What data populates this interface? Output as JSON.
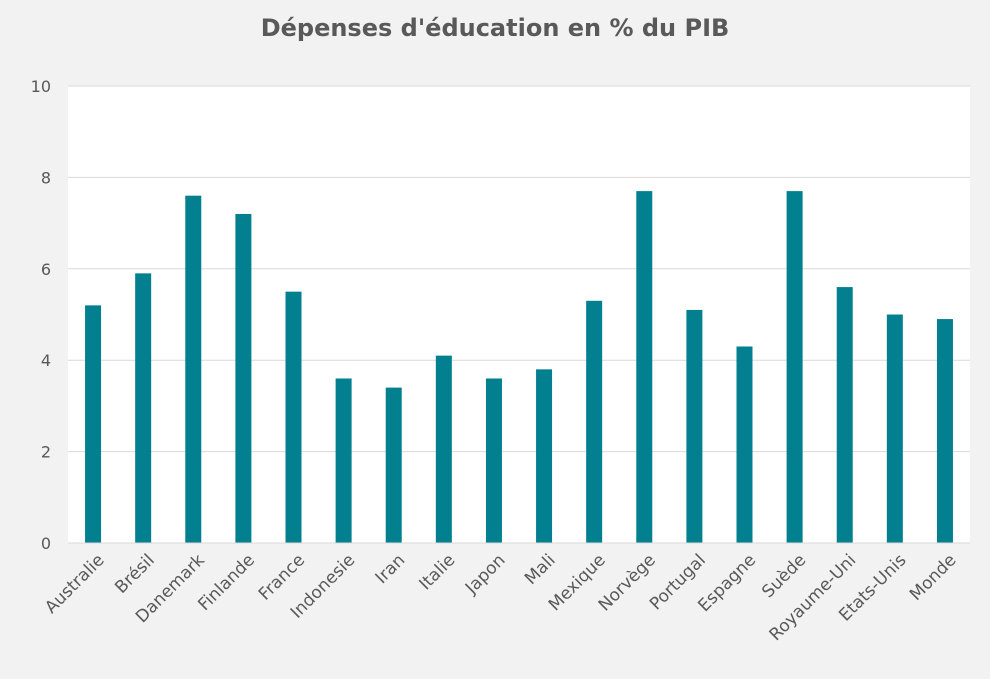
{
  "chart_data": {
    "type": "bar",
    "title": "Dépenses d'éducation en % du PIB",
    "xlabel": "",
    "ylabel": "",
    "categories": [
      "Australie",
      "Brésil",
      "Danemark",
      "Finlande",
      "France",
      "Indonesie",
      "Iran",
      "Italie",
      "Japon",
      "Mali",
      "Mexique",
      "Norvège",
      "Portugal",
      "Espagne",
      "Suède",
      "Royaume-Uni",
      "Etats-Unis",
      "Monde"
    ],
    "values": [
      5.2,
      5.9,
      7.6,
      7.2,
      5.5,
      3.6,
      3.4,
      4.1,
      3.6,
      3.8,
      5.3,
      7.7,
      5.1,
      4.3,
      7.7,
      5.6,
      5.0,
      4.9
    ],
    "ylim": [
      0,
      10
    ],
    "yticks": [
      0,
      2,
      4,
      6,
      8,
      10
    ],
    "grid": true,
    "legend": "none",
    "colors": {
      "bar": "#028090",
      "grid": "#d9d9d9",
      "plot_background": "#ffffff",
      "page_background": "#f2f2f2",
      "text": "#595959"
    }
  }
}
